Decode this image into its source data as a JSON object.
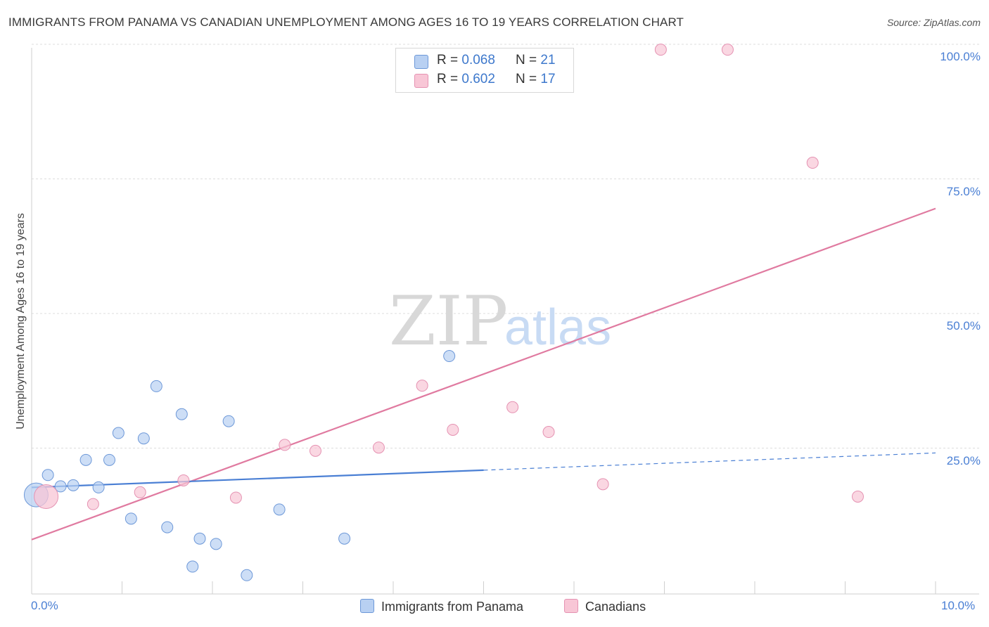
{
  "chart_data": {
    "type": "scatter",
    "title": "IMMIGRANTS FROM PANAMA VS CANADIAN UNEMPLOYMENT AMONG AGES 16 TO 19 YEARS CORRELATION CHART",
    "source": "Source: ZipAtlas.com",
    "ylabel": "Unemployment Among Ages 16 to 19 years",
    "xlim": [
      0,
      10
    ],
    "ylim": [
      0,
      100
    ],
    "x_ticks": [
      "0.0%",
      "10.0%"
    ],
    "y_ticks": [
      {
        "value": 25,
        "label": "25.0%"
      },
      {
        "value": 50,
        "label": "50.0%"
      },
      {
        "value": 75,
        "label": "75.0%"
      },
      {
        "value": 100,
        "label": "100.0%"
      }
    ],
    "watermark": {
      "zip": "ZIP",
      "atlas": "atlas"
    },
    "series": [
      {
        "name": "Immigrants from Panama",
        "color": "#4a7fd4",
        "fill": "#b8d0f2",
        "stroke": "#6d98d8",
        "R": "0.068",
        "N": "21",
        "trend": {
          "x0": 0.0,
          "y0": 17.7,
          "x1": 5.0,
          "y1": 20.9,
          "dash_to_x": 10.0,
          "dash_to_y": 24.1
        },
        "points": [
          {
            "x": 0.05,
            "y": 16.3,
            "big": true
          },
          {
            "x": 0.18,
            "y": 20.0
          },
          {
            "x": 0.32,
            "y": 17.9
          },
          {
            "x": 0.46,
            "y": 18.1
          },
          {
            "x": 0.6,
            "y": 22.8
          },
          {
            "x": 0.74,
            "y": 17.7
          },
          {
            "x": 0.86,
            "y": 22.8
          },
          {
            "x": 0.96,
            "y": 27.8
          },
          {
            "x": 1.1,
            "y": 11.9
          },
          {
            "x": 1.24,
            "y": 26.8
          },
          {
            "x": 1.38,
            "y": 36.5
          },
          {
            "x": 1.5,
            "y": 10.3
          },
          {
            "x": 1.66,
            "y": 31.3
          },
          {
            "x": 1.78,
            "y": 3.0
          },
          {
            "x": 1.86,
            "y": 8.2
          },
          {
            "x": 2.04,
            "y": 7.2
          },
          {
            "x": 2.18,
            "y": 30.0
          },
          {
            "x": 2.38,
            "y": 1.4
          },
          {
            "x": 2.74,
            "y": 13.6
          },
          {
            "x": 3.46,
            "y": 8.2
          },
          {
            "x": 4.62,
            "y": 42.1
          }
        ]
      },
      {
        "name": "Canadians",
        "color": "#e07aa0",
        "fill": "#f8c6d6",
        "stroke": "#e592b2",
        "R": "0.602",
        "N": "17",
        "trend": {
          "x0": 0.0,
          "y0": 8.0,
          "x1": 10.0,
          "y1": 69.5
        },
        "points": [
          {
            "x": 0.16,
            "y": 16.0,
            "big": true
          },
          {
            "x": 0.68,
            "y": 14.6
          },
          {
            "x": 1.2,
            "y": 16.8
          },
          {
            "x": 1.68,
            "y": 19.0
          },
          {
            "x": 2.26,
            "y": 15.8
          },
          {
            "x": 2.8,
            "y": 25.6
          },
          {
            "x": 3.14,
            "y": 24.5
          },
          {
            "x": 3.84,
            "y": 25.1
          },
          {
            "x": 4.32,
            "y": 36.6
          },
          {
            "x": 4.66,
            "y": 28.4
          },
          {
            "x": 5.32,
            "y": 32.6
          },
          {
            "x": 5.72,
            "y": 28.0
          },
          {
            "x": 6.32,
            "y": 18.3
          },
          {
            "x": 6.96,
            "y": 99.0
          },
          {
            "x": 7.7,
            "y": 99.0
          },
          {
            "x": 8.64,
            "y": 78.0
          },
          {
            "x": 9.14,
            "y": 16.0
          }
        ]
      }
    ],
    "legend": {
      "r_label": "R =",
      "n_label": "N ="
    }
  }
}
